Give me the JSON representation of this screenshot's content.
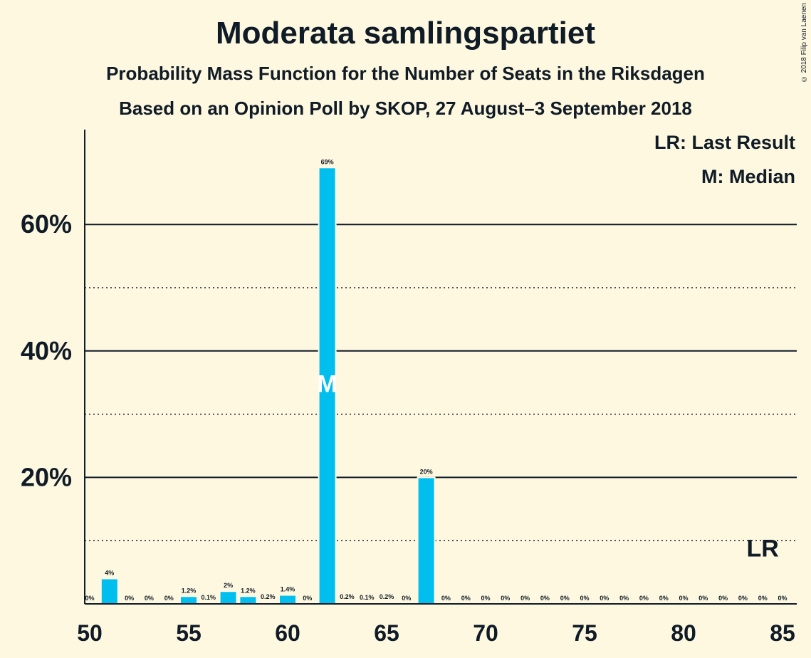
{
  "chart_data": {
    "type": "bar",
    "title": "Moderata samlingspartiet",
    "subtitle": "Probability Mass Function for the Number of Seats in the Riksdagen",
    "subtitle2": "Based on an Opinion Poll by SKOP, 27 August–3 September 2018",
    "copyright": "© 2018 Filip van Laenen",
    "legend": {
      "position": "top-right",
      "items": [
        "LR: Last Result",
        "M: Median"
      ]
    },
    "x": [
      50,
      51,
      52,
      53,
      54,
      55,
      56,
      57,
      58,
      59,
      60,
      61,
      62,
      63,
      64,
      65,
      66,
      67,
      68,
      69,
      70,
      71,
      72,
      73,
      74,
      75,
      76,
      77,
      78,
      79,
      80,
      81,
      82,
      83,
      84,
      85
    ],
    "values": [
      0,
      4,
      0,
      0,
      0,
      1.2,
      0.1,
      2,
      1.2,
      0.2,
      1.4,
      0,
      69,
      0.2,
      0.1,
      0.2,
      0,
      20,
      0,
      0,
      0,
      0,
      0,
      0,
      0,
      0,
      0,
      0,
      0,
      0,
      0,
      0,
      0,
      0,
      0,
      0
    ],
    "labels": [
      "0%",
      "4%",
      "0%",
      "0%",
      "0%",
      "1.2%",
      "0.1%",
      "2%",
      "1.2%",
      "0.2%",
      "1.4%",
      "0%",
      "69%",
      "0.2%",
      "0.1%",
      "0.2%",
      "0%",
      "20%",
      "0%",
      "0%",
      "0%",
      "0%",
      "0%",
      "0%",
      "0%",
      "0%",
      "0%",
      "0%",
      "0%",
      "0%",
      "0%",
      "0%",
      "0%",
      "0%",
      "0%",
      "0%"
    ],
    "xticks": [
      50,
      55,
      60,
      65,
      70,
      75,
      80,
      85
    ],
    "yticks": [
      {
        "value": 20,
        "label": "20%"
      },
      {
        "value": 40,
        "label": "40%"
      },
      {
        "value": 60,
        "label": "60%"
      }
    ],
    "minor_gridlines": [
      10,
      30,
      50
    ],
    "xlim": [
      50,
      85
    ],
    "ylim": [
      0,
      75
    ],
    "median": {
      "x": 62,
      "label": "M"
    },
    "last_result": {
      "x": 84,
      "label": "LR"
    },
    "bar_color": "#00BFEF",
    "text_color": "#0F1B26",
    "background": "#FFF8E0"
  }
}
